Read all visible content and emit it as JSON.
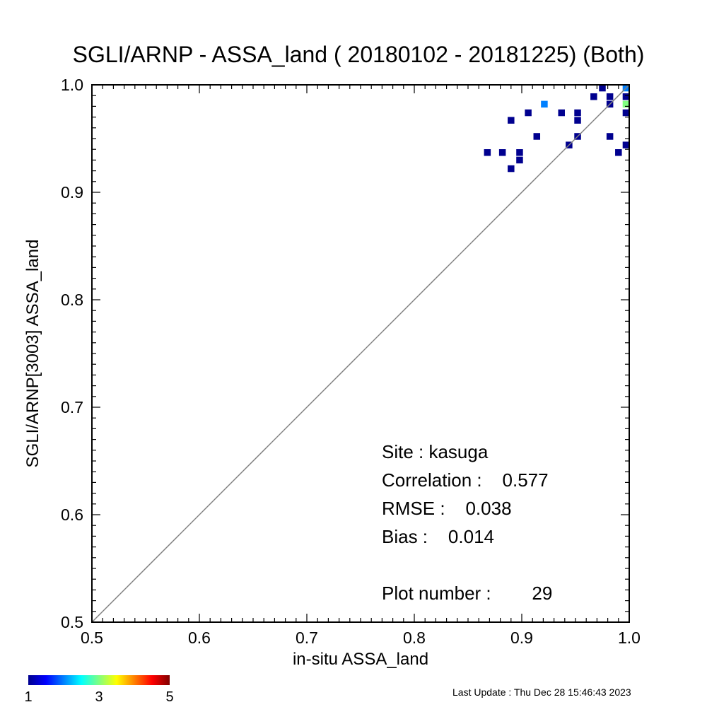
{
  "chart_data": {
    "type": "heatmap",
    "title": "SGLI/ARNP - ASSA_land ( 20180102 - 20181225) (Both)",
    "xlabel": "in-situ ASSA_land",
    "ylabel": "SGLI/ARNP[3003]    ASSA_land",
    "xlim": [
      0.5,
      1.0
    ],
    "ylim": [
      0.5,
      1.0
    ],
    "x_ticks": [
      "0.5",
      "0.6",
      "0.7",
      "0.8",
      "0.9",
      "1.0"
    ],
    "y_ticks": [
      "0.5",
      "0.6",
      "0.7",
      "0.8",
      "0.9",
      "1.0"
    ],
    "reference_line": "1:1",
    "cell_size": 0.00625,
    "cells": [
      {
        "x": 0.868,
        "y": 0.937,
        "count": 1
      },
      {
        "x": 0.882,
        "y": 0.937,
        "count": 1
      },
      {
        "x": 0.89,
        "y": 0.922,
        "count": 1
      },
      {
        "x": 0.89,
        "y": 0.967,
        "count": 1
      },
      {
        "x": 0.898,
        "y": 0.937,
        "count": 1
      },
      {
        "x": 0.898,
        "y": 0.93,
        "count": 1
      },
      {
        "x": 0.906,
        "y": 0.974,
        "count": 1
      },
      {
        "x": 0.914,
        "y": 0.952,
        "count": 1
      },
      {
        "x": 0.921,
        "y": 0.982,
        "count": 2
      },
      {
        "x": 0.937,
        "y": 0.974,
        "count": 1
      },
      {
        "x": 0.944,
        "y": 0.944,
        "count": 1
      },
      {
        "x": 0.952,
        "y": 0.974,
        "count": 1
      },
      {
        "x": 0.952,
        "y": 0.967,
        "count": 1
      },
      {
        "x": 0.952,
        "y": 0.952,
        "count": 1
      },
      {
        "x": 0.967,
        "y": 0.989,
        "count": 1
      },
      {
        "x": 0.975,
        "y": 0.997,
        "count": 1
      },
      {
        "x": 0.982,
        "y": 0.989,
        "count": 1
      },
      {
        "x": 0.982,
        "y": 0.982,
        "count": 1
      },
      {
        "x": 0.982,
        "y": 0.952,
        "count": 1
      },
      {
        "x": 0.99,
        "y": 0.937,
        "count": 1
      },
      {
        "x": 0.997,
        "y": 0.997,
        "count": 2
      },
      {
        "x": 0.997,
        "y": 0.989,
        "count": 1
      },
      {
        "x": 0.997,
        "y": 0.982,
        "count": 3
      },
      {
        "x": 0.997,
        "y": 0.974,
        "count": 1
      },
      {
        "x": 0.997,
        "y": 0.944,
        "count": 1
      }
    ],
    "colorbar": {
      "min": 1,
      "max": 5,
      "tick_labels": [
        "1",
        "3",
        "5"
      ],
      "colormap": [
        "#00008f",
        "#0000ff",
        "#0080ff",
        "#00ffff",
        "#80ff80",
        "#ffff00",
        "#ff8000",
        "#ff0000",
        "#800000"
      ]
    },
    "stats": {
      "site": "Site : kasuga",
      "correlation": "Correlation :    0.577",
      "rmse": "RMSE :    0.038",
      "bias": "Bias :    0.014",
      "plot_number": "Plot number :        29"
    }
  },
  "footer": {
    "last_update": "Last Update : Thu Dec 28 15:46:43 2023"
  }
}
